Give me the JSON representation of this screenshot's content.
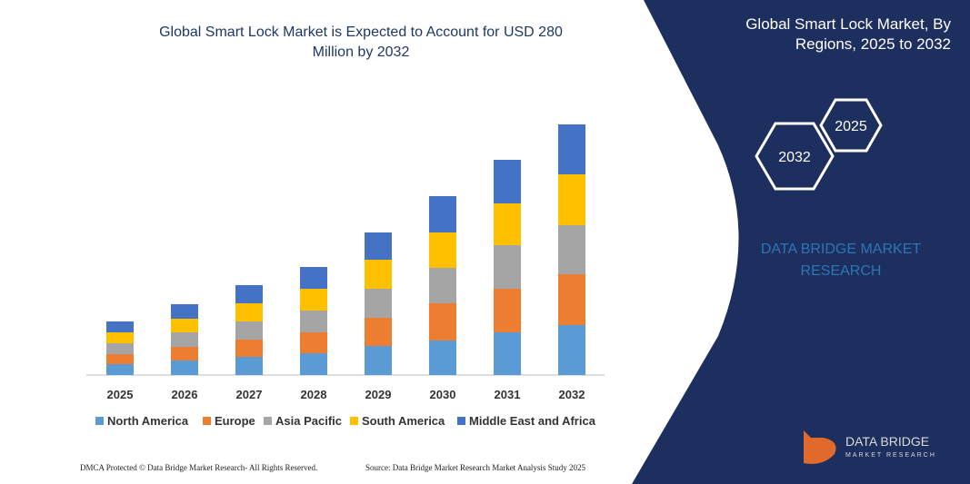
{
  "chart_data": {
    "type": "stacked_bar",
    "title": "Global Smart Lock Market is Expected to Account for USD 280 Million by 2032",
    "categories": [
      "2025",
      "2026",
      "2027",
      "2028",
      "2029",
      "2030",
      "2031",
      "2032"
    ],
    "series": [
      {
        "name": "North America",
        "color": "#5b9bd5",
        "values": [
          12,
          16,
          20,
          24,
          32,
          38,
          47,
          55
        ]
      },
      {
        "name": "Europe",
        "color": "#ed7d31",
        "values": [
          11,
          15,
          19,
          23,
          31,
          41,
          48,
          56
        ]
      },
      {
        "name": "Asia Pacific",
        "color": "#a5a5a5",
        "values": [
          12,
          16,
          20,
          24,
          32,
          39,
          48,
          54
        ]
      },
      {
        "name": "South America",
        "color": "#ffc000",
        "values": [
          12,
          15,
          20,
          24,
          32,
          39,
          46,
          56
        ]
      },
      {
        "name": "Middle East and Africa",
        "color": "#4472c4",
        "values": [
          12,
          16,
          20,
          24,
          30,
          40,
          48,
          55
        ]
      }
    ],
    "ylim": [
      0,
      280
    ]
  },
  "panel": {
    "title": "Global Smart Lock Market, By Regions, 2025 to 2032",
    "hex_large": "2032",
    "hex_small": "2025",
    "brand": "DATA BRIDGE MARKET RESEARCH"
  },
  "logo": {
    "name": "DATA BRIDGE",
    "sub": "MARKET RESEARCH"
  },
  "footer": {
    "left": "DMCA Protected © Data Bridge Market Research- All Rights Reserved.",
    "right": "Source: Data Bridge Market Research Market Analysis Study 2025"
  }
}
